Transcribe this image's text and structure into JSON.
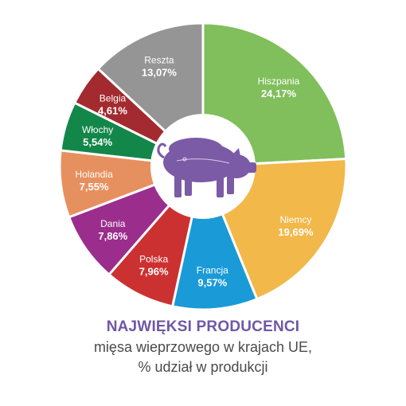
{
  "caption": {
    "title": "NAJWIĘKSI PRODUCENCI",
    "line1": "mięsa wieprzowego w krajach UE,",
    "line2": "% udział w produkcji"
  },
  "center_icon": "pig-icon",
  "colors": {
    "center_circle": "#ffffff",
    "pig": "#7b5aa6"
  },
  "chart_data": {
    "type": "pie",
    "style": "donut",
    "start": "top",
    "direction": "clockwise",
    "categories": [
      "Hiszpania",
      "Niemcy",
      "Francja",
      "Polska",
      "Dania",
      "Holandia",
      "Włochy",
      "Belgia",
      "Reszta"
    ],
    "values": [
      24.17,
      19.69,
      9.57,
      7.96,
      7.86,
      7.55,
      5.54,
      4.61,
      13.07
    ],
    "labels": [
      "24,17%",
      "19,69%",
      "9,57%",
      "7,96%",
      "7,86%",
      "7,55%",
      "5,54%",
      "4,61%",
      "13,07%"
    ],
    "colors": [
      "#80bf5b",
      "#f2b84a",
      "#1a9ad7",
      "#cc3131",
      "#9b2e8c",
      "#e7905f",
      "#13874a",
      "#a32a2f",
      "#959595"
    ]
  }
}
